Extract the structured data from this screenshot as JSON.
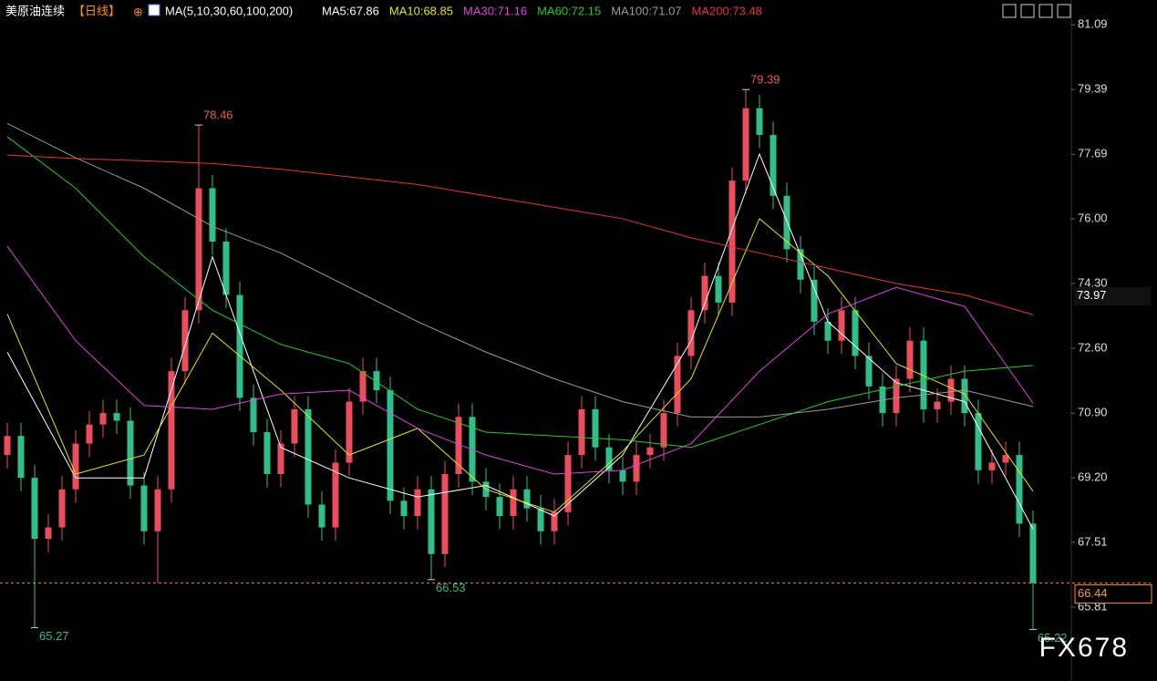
{
  "header": {
    "symbol": "美原油连续",
    "period": "【日线】",
    "indicator": "MA(5,10,30,60,100,200)"
  },
  "watermark": "FX678",
  "chart_data": {
    "type": "candlestick",
    "ylim": [
      63.87,
      81.74
    ],
    "yticks": [
      81.09,
      79.39,
      77.69,
      {
        "value": 76,
        "label": "76.00"
      },
      {
        "value": 74.3,
        "label": "74.30"
      },
      {
        "value": 72.6,
        "label": "72.60"
      },
      {
        "value": 70.9,
        "label": "70.90"
      },
      {
        "value": 69.2,
        "label": "69.20"
      },
      67.51,
      65.81
    ],
    "up_color": "#eb4d5c",
    "down_color": "#2fbf8c",
    "open": [
      69.8,
      70.3,
      69.2,
      67.6,
      67.9,
      68.9,
      70.1,
      70.6,
      70.9,
      70.7,
      69.0,
      67.8,
      68.9,
      72.0,
      73.6,
      76.8,
      75.4,
      74.0,
      71.3,
      70.4,
      69.3,
      70.1,
      71.0,
      68.5,
      67.9,
      69.6,
      71.2,
      72.0,
      71.5,
      68.6,
      68.2,
      68.9,
      67.2,
      69.3,
      70.8,
      69.1,
      68.7,
      68.2,
      68.9,
      68.4,
      67.8,
      68.3,
      69.8,
      71.0,
      70.0,
      69.4,
      69.1,
      69.8,
      70.0,
      70.9,
      72.4,
      73.6,
      74.5,
      73.8,
      77.0,
      78.9,
      78.2,
      76.6,
      75.2,
      74.4,
      73.3,
      72.8,
      73.6,
      72.4,
      71.6,
      70.9,
      71.8,
      72.8,
      71.0,
      71.2,
      71.8,
      70.9,
      69.4,
      69.6,
      69.8,
      68.0
    ],
    "high": [
      70.65,
      70.65,
      69.55,
      68.25,
      69.25,
      70.45,
      70.95,
      71.25,
      71.25,
      71.05,
      69.35,
      69.25,
      72.35,
      73.95,
      78.46,
      77.15,
      75.75,
      74.35,
      71.65,
      70.75,
      70.45,
      71.35,
      71.35,
      68.85,
      69.95,
      71.55,
      72.35,
      72.35,
      71.85,
      68.95,
      69.25,
      69.25,
      69.65,
      71.15,
      71.15,
      69.45,
      69.05,
      69.25,
      69.25,
      68.75,
      68.65,
      70.15,
      71.35,
      71.35,
      70.35,
      69.75,
      70.15,
      70.35,
      71.25,
      72.75,
      73.95,
      74.85,
      74.85,
      77.35,
      79.39,
      79.25,
      78.55,
      76.95,
      75.55,
      74.75,
      73.65,
      73.95,
      73.95,
      72.75,
      71.95,
      72.15,
      73.15,
      73.15,
      71.55,
      72.15,
      72.15,
      71.25,
      69.95,
      70.15,
      70.15,
      68.35
    ],
    "low": [
      69.45,
      68.85,
      65.27,
      67.25,
      67.55,
      68.55,
      69.75,
      70.25,
      70.35,
      68.65,
      67.45,
      66.44,
      68.55,
      71.65,
      73.25,
      75.05,
      73.65,
      70.95,
      70.05,
      68.95,
      68.95,
      69.75,
      68.15,
      67.55,
      67.55,
      69.25,
      70.85,
      71.15,
      68.25,
      67.85,
      67.85,
      66.53,
      66.85,
      68.95,
      68.75,
      68.35,
      67.85,
      67.85,
      68.05,
      67.45,
      67.45,
      67.95,
      69.45,
      69.65,
      69.05,
      68.75,
      68.75,
      69.45,
      69.65,
      70.55,
      72.05,
      73.25,
      73.45,
      73.45,
      76.65,
      77.85,
      76.25,
      74.85,
      74.05,
      72.95,
      72.45,
      72.45,
      72.05,
      71.25,
      70.55,
      70.55,
      71.45,
      70.65,
      70.65,
      70.85,
      70.55,
      69.05,
      69.05,
      69.25,
      67.65,
      65.22
    ],
    "close": [
      70.3,
      69.2,
      67.6,
      67.9,
      68.9,
      70.1,
      70.6,
      70.9,
      70.7,
      69.0,
      67.8,
      68.9,
      72.0,
      73.6,
      76.8,
      75.4,
      74.0,
      71.3,
      70.4,
      69.3,
      70.1,
      71.0,
      68.5,
      67.9,
      69.6,
      71.2,
      72.0,
      71.5,
      68.6,
      68.2,
      68.9,
      67.2,
      69.3,
      70.8,
      69.1,
      68.7,
      68.2,
      68.9,
      68.4,
      67.8,
      68.3,
      69.8,
      71.0,
      70.0,
      69.4,
      69.1,
      69.8,
      70.0,
      70.9,
      72.4,
      73.6,
      74.5,
      73.8,
      77.0,
      78.9,
      78.2,
      76.6,
      75.2,
      74.4,
      73.3,
      72.8,
      73.6,
      72.4,
      71.6,
      70.9,
      71.8,
      72.8,
      71.0,
      71.2,
      71.8,
      70.9,
      69.4,
      69.6,
      69.8,
      68.0,
      66.44
    ],
    "marker_price": 73.97,
    "ma_lines": {
      "x_index": [
        0,
        5,
        10,
        15,
        20,
        25,
        30,
        35,
        40,
        45,
        50,
        55,
        60,
        65,
        70,
        75
      ],
      "series": [
        {
          "label": "MA5:67.86",
          "color": "#ffffff",
          "values": [
            72.5,
            69.2,
            69.2,
            75.0,
            70.0,
            69.2,
            68.7,
            69.0,
            68.2,
            69.8,
            72.8,
            77.7,
            73.3,
            71.7,
            71.2,
            67.86
          ]
        },
        {
          "label": "MA10:68.85",
          "color": "#e6e600",
          "values": [
            73.5,
            69.3,
            69.8,
            73.0,
            71.5,
            69.8,
            70.5,
            68.9,
            68.3,
            69.9,
            71.8,
            76.0,
            74.5,
            72.2,
            71.4,
            68.85
          ]
        },
        {
          "label": "MA30:71.16",
          "color": "#e040e0",
          "values": [
            75.28,
            72.8,
            71.1,
            71.0,
            71.4,
            71.5,
            70.5,
            69.8,
            69.3,
            69.4,
            70.1,
            72.0,
            73.5,
            74.2,
            73.7,
            71.16
          ]
        },
        {
          "label": "MA60:72.15",
          "color": "#22cc22",
          "values": [
            78.15,
            76.8,
            75.0,
            73.6,
            72.7,
            72.2,
            71.0,
            70.4,
            70.3,
            70.2,
            70.0,
            70.6,
            71.2,
            71.6,
            72.0,
            72.15
          ]
        },
        {
          "label": "MA100:71.07",
          "color": "#9a9a9a",
          "values": [
            78.5,
            77.6,
            76.8,
            75.8,
            75.1,
            74.2,
            73.3,
            72.5,
            71.8,
            71.2,
            70.8,
            70.8,
            71.0,
            71.3,
            71.5,
            71.07
          ]
        },
        {
          "label": "MA200:73.48",
          "color": "#e83333",
          "values": [
            77.67,
            77.58,
            77.52,
            77.45,
            77.3,
            77.1,
            76.9,
            76.6,
            76.3,
            76.0,
            75.5,
            75.1,
            74.7,
            74.3,
            74.0,
            73.48
          ]
        }
      ]
    }
  }
}
